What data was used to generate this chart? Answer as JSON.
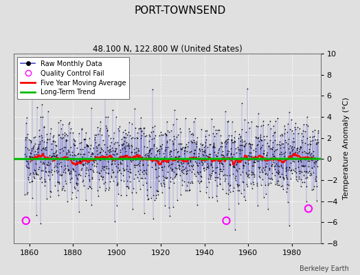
{
  "title": "PORT-TOWNSEND",
  "subtitle": "48.100 N, 122.800 W (United States)",
  "credit": "Berkeley Earth",
  "ylabel": "Temperature Anomaly (°C)",
  "xlim": [
    1853,
    1993
  ],
  "ylim": [
    -8,
    10
  ],
  "yticks": [
    -8,
    -6,
    -4,
    -2,
    0,
    2,
    4,
    6,
    8,
    10
  ],
  "xticks": [
    1860,
    1880,
    1900,
    1920,
    1940,
    1960,
    1980
  ],
  "background_color": "#e0e0e0",
  "plot_bg_color": "#e0e0e0",
  "raw_line_color": "#4444cc",
  "raw_line_alpha": 0.6,
  "raw_dot_color": "#000000",
  "moving_avg_color": "#ff0000",
  "trend_color": "#00bb00",
  "qc_fail_color": "#ff00ff",
  "qc_fail_points": [
    [
      1858.5,
      -5.85
    ],
    [
      1950.0,
      -5.85
    ],
    [
      1987.5,
      -4.7
    ]
  ],
  "seed": 17,
  "year_start": 1858,
  "year_end": 1992,
  "n_months": 1608,
  "noise_std": 1.8,
  "trend_slope": -0.0008
}
